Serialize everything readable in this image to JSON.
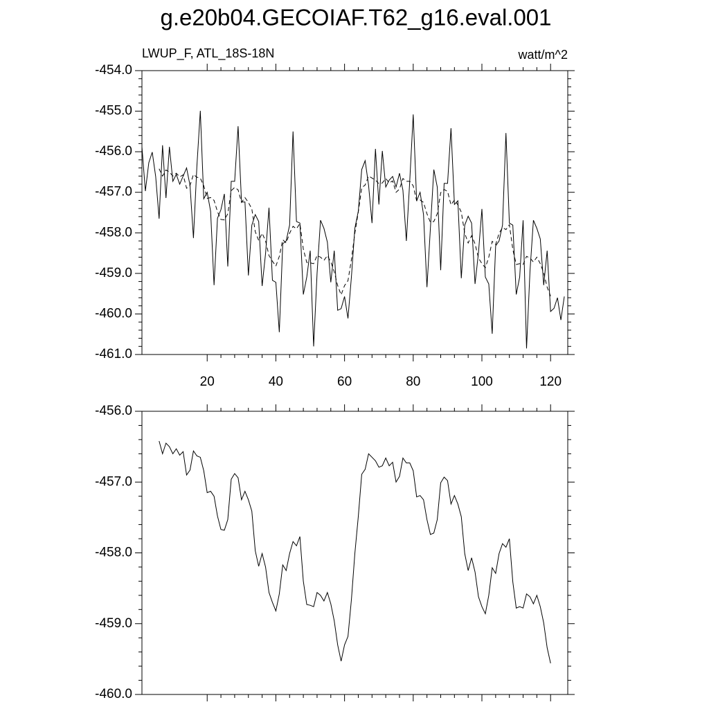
{
  "chart_data": [
    {
      "type": "line",
      "title": "g.e20b04.GECOIAF.T62_g16.eval.001",
      "subtitle_left": "LWUP_F, ATL_18S-18N",
      "subtitle_right": "watt/m^2",
      "xlim": [
        1,
        125
      ],
      "xticks": [
        20,
        40,
        60,
        80,
        100,
        120
      ],
      "ylim": [
        -461,
        -454
      ],
      "yticks": [
        {
          "value": -454,
          "label": "-454.0"
        },
        {
          "value": -455,
          "label": "-455.0"
        },
        {
          "value": -456,
          "label": "-456.0"
        },
        {
          "value": -457,
          "label": "-457.0"
        },
        {
          "value": -458,
          "label": "-458.0"
        },
        {
          "value": -459,
          "label": "-459.0"
        },
        {
          "value": -460,
          "label": "-460.0"
        },
        {
          "value": -461,
          "label": "-461.0"
        }
      ],
      "series": [
        {
          "color": "#000000",
          "dash": false,
          "x": [
            1,
            2,
            3,
            4,
            5,
            6,
            7,
            8,
            9,
            10,
            11,
            12,
            13,
            14,
            15,
            16,
            17,
            18,
            19,
            20,
            21,
            22,
            23,
            24,
            25,
            26,
            27,
            28,
            29,
            30,
            31,
            32,
            33,
            34,
            35,
            36,
            37,
            38,
            39,
            40,
            41,
            42,
            43,
            44,
            45,
            46,
            47,
            48,
            49,
            50,
            51,
            52,
            53,
            54,
            55,
            56,
            57,
            58,
            59,
            60,
            61,
            62,
            63,
            64,
            65,
            66,
            67,
            68,
            69,
            70,
            71,
            72,
            73,
            74,
            75,
            76,
            77,
            78,
            79,
            80,
            81,
            82,
            83,
            84,
            85,
            86,
            87,
            88,
            89,
            90,
            91,
            92,
            93,
            94,
            95,
            96,
            97,
            98,
            99,
            100,
            101,
            102,
            103,
            104,
            105,
            106,
            107,
            108,
            109,
            110,
            111,
            112,
            113,
            114,
            115,
            116,
            117,
            118,
            119,
            120,
            121,
            122,
            123,
            124
          ],
          "values": [
            -455.88,
            -456.97,
            -456.27,
            -456.01,
            -456.61,
            -457.65,
            -455.84,
            -457.14,
            -455.88,
            -456.73,
            -456.56,
            -456.8,
            -456.6,
            -456.4,
            -456.83,
            -458.13,
            -456.36,
            -454.99,
            -457.16,
            -457.0,
            -457.47,
            -459.29,
            -457.64,
            -457.43,
            -457.04,
            -458.83,
            -456.73,
            -456.73,
            -455.37,
            -457.24,
            -457.24,
            -459.05,
            -457.81,
            -457.55,
            -457.72,
            -459.31,
            -458.51,
            -457.38,
            -459.17,
            -459.22,
            -460.45,
            -458.27,
            -458.2,
            -457.81,
            -455.5,
            -457.72,
            -457.76,
            -459.52,
            -459.09,
            -458.44,
            -460.8,
            -459.0,
            -457.69,
            -457.89,
            -458.23,
            -459.22,
            -458.44,
            -459.91,
            -459.87,
            -459.57,
            -460.11,
            -459.09,
            -457.89,
            -457.47,
            -456.44,
            -456.22,
            -456.83,
            -457.76,
            -455.93,
            -457.3,
            -455.98,
            -456.87,
            -456.7,
            -456.61,
            -456.87,
            -456.53,
            -456.95,
            -458.2,
            -456.7,
            -455.08,
            -457.21,
            -457.0,
            -457.55,
            -459.34,
            -457.89,
            -456.44,
            -456.87,
            -458.92,
            -456.78,
            -456.78,
            -455.42,
            -457.3,
            -457.21,
            -459.12,
            -457.81,
            -457.59,
            -457.76,
            -459.26,
            -458.49,
            -457.41,
            -459.09,
            -459.26,
            -460.49,
            -458.32,
            -458.2,
            -457.81,
            -455.54,
            -457.76,
            -457.81,
            -459.52,
            -459.09,
            -457.69,
            -460.85,
            -458.95,
            -457.69,
            -457.89,
            -458.15,
            -459.29,
            -458.44,
            -459.94,
            -459.86,
            -459.6,
            -460.15,
            -459.57
          ]
        },
        {
          "color": "#000000",
          "dash": true,
          "x": [
            6,
            7,
            8,
            9,
            10,
            11,
            12,
            13,
            14,
            15,
            16,
            17,
            18,
            19,
            20,
            21,
            22,
            23,
            24,
            25,
            26,
            27,
            28,
            29,
            30,
            31,
            32,
            33,
            34,
            35,
            36,
            37,
            38,
            39,
            40,
            41,
            42,
            43,
            44,
            45,
            46,
            47,
            48,
            49,
            50,
            51,
            52,
            53,
            54,
            55,
            56,
            57,
            58,
            59,
            60,
            61,
            62,
            63,
            64,
            65,
            66,
            67,
            68,
            69,
            70,
            71,
            72,
            73,
            74,
            75,
            76,
            77,
            78,
            79,
            80,
            81,
            82,
            83,
            84,
            85,
            86,
            87,
            88,
            89,
            90,
            91,
            92,
            93,
            94,
            95,
            96,
            97,
            98,
            99,
            100,
            101,
            102,
            103,
            104,
            105,
            106,
            107,
            108,
            109,
            110,
            111,
            112,
            113,
            114,
            115,
            116,
            117,
            118,
            119,
            120
          ],
          "values": [
            -456.42,
            -456.6,
            -456.45,
            -456.5,
            -456.6,
            -456.53,
            -456.62,
            -456.57,
            -456.9,
            -456.83,
            -456.56,
            -456.63,
            -456.65,
            -456.84,
            -457.15,
            -457.13,
            -457.2,
            -457.48,
            -457.67,
            -457.68,
            -457.53,
            -456.96,
            -456.88,
            -456.94,
            -457.25,
            -457.13,
            -457.25,
            -457.41,
            -457.97,
            -458.19,
            -458.01,
            -458.2,
            -458.56,
            -458.7,
            -458.82,
            -458.58,
            -458.17,
            -458.25,
            -458.01,
            -457.84,
            -457.9,
            -457.77,
            -458.4,
            -458.73,
            -458.74,
            -458.76,
            -458.56,
            -458.6,
            -458.68,
            -458.56,
            -458.72,
            -458.96,
            -459.3,
            -459.53,
            -459.3,
            -459.18,
            -458.66,
            -458.01,
            -457.49,
            -456.89,
            -456.82,
            -456.6,
            -456.65,
            -456.7,
            -456.79,
            -456.77,
            -456.66,
            -456.77,
            -456.72,
            -457.0,
            -456.92,
            -456.66,
            -456.73,
            -456.73,
            -456.84,
            -457.21,
            -457.19,
            -457.25,
            -457.53,
            -457.74,
            -457.72,
            -457.53,
            -457.01,
            -456.93,
            -456.98,
            -457.31,
            -457.19,
            -457.31,
            -457.49,
            -458.01,
            -458.25,
            -458.07,
            -458.27,
            -458.62,
            -458.76,
            -458.86,
            -458.6,
            -458.21,
            -458.29,
            -458.01,
            -457.87,
            -457.92,
            -457.8,
            -458.41,
            -458.78,
            -458.76,
            -458.78,
            -458.58,
            -458.62,
            -458.72,
            -458.6,
            -458.76,
            -458.99,
            -459.34,
            -459.56
          ]
        }
      ]
    },
    {
      "type": "line",
      "xlim": [
        1,
        125
      ],
      "xticks": [
        20,
        40,
        60,
        80,
        100,
        120
      ],
      "xtick_labels": false,
      "ylim": [
        -460,
        -456
      ],
      "yticks": [
        {
          "value": -456,
          "label": "-456.0"
        },
        {
          "value": -457,
          "label": "-457.0"
        },
        {
          "value": -458,
          "label": "-458.0"
        },
        {
          "value": -459,
          "label": "-459.0"
        },
        {
          "value": -460,
          "label": "-460.0"
        }
      ],
      "series": [
        {
          "color": "#000000",
          "dash": false,
          "x": [
            6,
            7,
            8,
            9,
            10,
            11,
            12,
            13,
            14,
            15,
            16,
            17,
            18,
            19,
            20,
            21,
            22,
            23,
            24,
            25,
            26,
            27,
            28,
            29,
            30,
            31,
            32,
            33,
            34,
            35,
            36,
            37,
            38,
            39,
            40,
            41,
            42,
            43,
            44,
            45,
            46,
            47,
            48,
            49,
            50,
            51,
            52,
            53,
            54,
            55,
            56,
            57,
            58,
            59,
            60,
            61,
            62,
            63,
            64,
            65,
            66,
            67,
            68,
            69,
            70,
            71,
            72,
            73,
            74,
            75,
            76,
            77,
            78,
            79,
            80,
            81,
            82,
            83,
            84,
            85,
            86,
            87,
            88,
            89,
            90,
            91,
            92,
            93,
            94,
            95,
            96,
            97,
            98,
            99,
            100,
            101,
            102,
            103,
            104,
            105,
            106,
            107,
            108,
            109,
            110,
            111,
            112,
            113,
            114,
            115,
            116,
            117,
            118,
            119,
            120
          ],
          "values": [
            -456.42,
            -456.6,
            -456.45,
            -456.5,
            -456.6,
            -456.53,
            -456.62,
            -456.57,
            -456.9,
            -456.83,
            -456.56,
            -456.63,
            -456.65,
            -456.84,
            -457.15,
            -457.13,
            -457.2,
            -457.48,
            -457.67,
            -457.68,
            -457.53,
            -456.96,
            -456.88,
            -456.94,
            -457.25,
            -457.13,
            -457.25,
            -457.41,
            -457.97,
            -458.19,
            -458.01,
            -458.2,
            -458.56,
            -458.7,
            -458.82,
            -458.58,
            -458.17,
            -458.25,
            -458.01,
            -457.84,
            -457.9,
            -457.77,
            -458.4,
            -458.73,
            -458.74,
            -458.76,
            -458.56,
            -458.6,
            -458.68,
            -458.56,
            -458.72,
            -458.96,
            -459.3,
            -459.53,
            -459.3,
            -459.18,
            -458.66,
            -458.01,
            -457.49,
            -456.89,
            -456.82,
            -456.6,
            -456.65,
            -456.7,
            -456.79,
            -456.77,
            -456.66,
            -456.77,
            -456.72,
            -457.0,
            -456.92,
            -456.66,
            -456.73,
            -456.73,
            -456.84,
            -457.21,
            -457.19,
            -457.25,
            -457.53,
            -457.74,
            -457.72,
            -457.53,
            -457.01,
            -456.93,
            -456.98,
            -457.31,
            -457.19,
            -457.31,
            -457.49,
            -458.01,
            -458.25,
            -458.07,
            -458.27,
            -458.62,
            -458.76,
            -458.86,
            -458.6,
            -458.21,
            -458.29,
            -458.01,
            -457.87,
            -457.92,
            -457.8,
            -458.41,
            -458.78,
            -458.76,
            -458.78,
            -458.58,
            -458.62,
            -458.72,
            -458.6,
            -458.76,
            -458.99,
            -459.34,
            -459.56
          ]
        }
      ]
    }
  ]
}
